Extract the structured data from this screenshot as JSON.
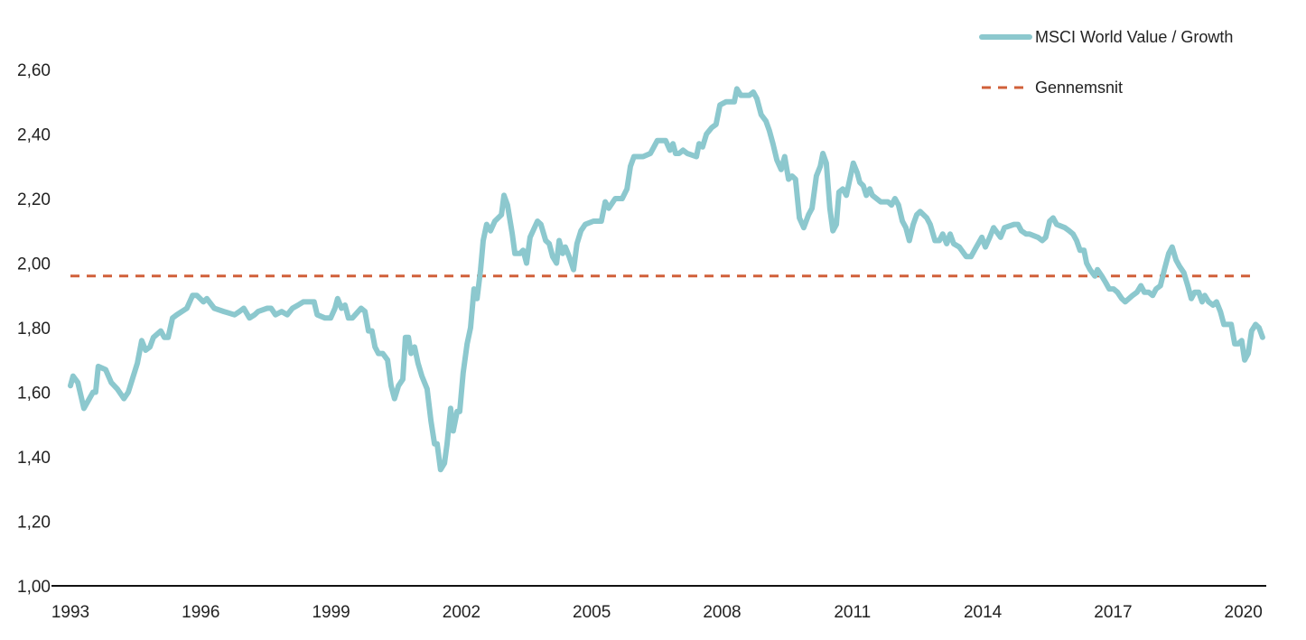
{
  "chart_data": {
    "type": "line",
    "title": "",
    "xlabel": "",
    "ylabel": "",
    "xlim": [
      1993,
      2020.45
    ],
    "ylim": [
      1.0,
      2.6
    ],
    "y_ticks": [
      "1,00",
      "1,20",
      "1,40",
      "1,60",
      "1,80",
      "2,00",
      "2,20",
      "2,40",
      "2,60"
    ],
    "y_tick_values": [
      1.0,
      1.2,
      1.4,
      1.6,
      1.8,
      2.0,
      2.2,
      2.4,
      2.6
    ],
    "x_ticks": [
      "1993",
      "1996",
      "1999",
      "2002",
      "2005",
      "2008",
      "2011",
      "2014",
      "2017",
      "2020"
    ],
    "x_tick_values": [
      1993,
      1996,
      1999,
      2002,
      2005,
      2008,
      2011,
      2014,
      2017,
      2020
    ],
    "grid": false,
    "legend_position": "top-right",
    "series": [
      {
        "name": "MSCI World Value / Growth",
        "color": "#8CC8CE",
        "style": "solid",
        "points": [
          [
            1993.0,
            1.62
          ],
          [
            1993.06,
            1.65
          ],
          [
            1993.17,
            1.63
          ],
          [
            1993.31,
            1.55
          ],
          [
            1993.52,
            1.6
          ],
          [
            1993.58,
            1.6
          ],
          [
            1993.64,
            1.68
          ],
          [
            1993.81,
            1.67
          ],
          [
            1993.94,
            1.63
          ],
          [
            1994.08,
            1.61
          ],
          [
            1994.23,
            1.58
          ],
          [
            1994.33,
            1.6
          ],
          [
            1994.54,
            1.69
          ],
          [
            1994.64,
            1.76
          ],
          [
            1994.73,
            1.73
          ],
          [
            1994.83,
            1.74
          ],
          [
            1994.91,
            1.77
          ],
          [
            1995.08,
            1.79
          ],
          [
            1995.16,
            1.77
          ],
          [
            1995.25,
            1.77
          ],
          [
            1995.35,
            1.83
          ],
          [
            1995.45,
            1.84
          ],
          [
            1995.68,
            1.86
          ],
          [
            1995.81,
            1.9
          ],
          [
            1995.91,
            1.9
          ],
          [
            1996.06,
            1.88
          ],
          [
            1996.14,
            1.89
          ],
          [
            1996.31,
            1.86
          ],
          [
            1996.53,
            1.85
          ],
          [
            1996.78,
            1.84
          ],
          [
            1996.89,
            1.85
          ],
          [
            1996.99,
            1.86
          ],
          [
            1997.12,
            1.83
          ],
          [
            1997.24,
            1.84
          ],
          [
            1997.32,
            1.85
          ],
          [
            1997.53,
            1.86
          ],
          [
            1997.62,
            1.86
          ],
          [
            1997.72,
            1.84
          ],
          [
            1997.86,
            1.85
          ],
          [
            1997.99,
            1.84
          ],
          [
            1998.11,
            1.86
          ],
          [
            1998.24,
            1.87
          ],
          [
            1998.36,
            1.88
          ],
          [
            1998.51,
            1.88
          ],
          [
            1998.61,
            1.88
          ],
          [
            1998.68,
            1.84
          ],
          [
            1998.86,
            1.83
          ],
          [
            1998.99,
            1.83
          ],
          [
            1999.09,
            1.86
          ],
          [
            1999.15,
            1.89
          ],
          [
            1999.24,
            1.86
          ],
          [
            1999.32,
            1.87
          ],
          [
            1999.4,
            1.83
          ],
          [
            1999.49,
            1.83
          ],
          [
            1999.69,
            1.86
          ],
          [
            1999.78,
            1.85
          ],
          [
            1999.86,
            1.79
          ],
          [
            1999.94,
            1.79
          ],
          [
            2000.01,
            1.74
          ],
          [
            2000.09,
            1.72
          ],
          [
            2000.19,
            1.72
          ],
          [
            2000.3,
            1.7
          ],
          [
            2000.38,
            1.62
          ],
          [
            2000.46,
            1.58
          ],
          [
            2000.55,
            1.62
          ],
          [
            2000.65,
            1.64
          ],
          [
            2000.71,
            1.77
          ],
          [
            2000.78,
            1.77
          ],
          [
            2000.84,
            1.72
          ],
          [
            2000.92,
            1.74
          ],
          [
            2001.0,
            1.69
          ],
          [
            2001.09,
            1.65
          ],
          [
            2001.21,
            1.61
          ],
          [
            2001.3,
            1.51
          ],
          [
            2001.38,
            1.44
          ],
          [
            2001.44,
            1.44
          ],
          [
            2001.52,
            1.36
          ],
          [
            2001.61,
            1.38
          ],
          [
            2001.67,
            1.44
          ],
          [
            2001.75,
            1.55
          ],
          [
            2001.81,
            1.48
          ],
          [
            2001.9,
            1.54
          ],
          [
            2001.96,
            1.54
          ],
          [
            2002.04,
            1.66
          ],
          [
            2002.13,
            1.75
          ],
          [
            2002.21,
            1.8
          ],
          [
            2002.29,
            1.92
          ],
          [
            2002.36,
            1.89
          ],
          [
            2002.44,
            1.98
          ],
          [
            2002.5,
            2.07
          ],
          [
            2002.58,
            2.12
          ],
          [
            2002.67,
            2.1
          ],
          [
            2002.77,
            2.13
          ],
          [
            2002.92,
            2.15
          ],
          [
            2002.98,
            2.21
          ],
          [
            2003.06,
            2.18
          ],
          [
            2003.17,
            2.09
          ],
          [
            2003.23,
            2.03
          ],
          [
            2003.35,
            2.03
          ],
          [
            2003.42,
            2.04
          ],
          [
            2003.5,
            2.0
          ],
          [
            2003.58,
            2.08
          ],
          [
            2003.75,
            2.13
          ],
          [
            2003.83,
            2.12
          ],
          [
            2003.94,
            2.07
          ],
          [
            2004.02,
            2.06
          ],
          [
            2004.1,
            2.02
          ],
          [
            2004.19,
            2.0
          ],
          [
            2004.25,
            2.07
          ],
          [
            2004.33,
            2.03
          ],
          [
            2004.39,
            2.05
          ],
          [
            2004.48,
            2.02
          ],
          [
            2004.58,
            1.98
          ],
          [
            2004.66,
            2.06
          ],
          [
            2004.75,
            2.1
          ],
          [
            2004.85,
            2.12
          ],
          [
            2005.04,
            2.13
          ],
          [
            2005.22,
            2.13
          ],
          [
            2005.31,
            2.19
          ],
          [
            2005.39,
            2.17
          ],
          [
            2005.54,
            2.2
          ],
          [
            2005.7,
            2.2
          ],
          [
            2005.81,
            2.23
          ],
          [
            2005.89,
            2.3
          ],
          [
            2005.97,
            2.33
          ],
          [
            2006.18,
            2.33
          ],
          [
            2006.35,
            2.34
          ],
          [
            2006.43,
            2.36
          ],
          [
            2006.51,
            2.38
          ],
          [
            2006.7,
            2.38
          ],
          [
            2006.8,
            2.35
          ],
          [
            2006.87,
            2.37
          ],
          [
            2006.93,
            2.34
          ],
          [
            2007.01,
            2.34
          ],
          [
            2007.1,
            2.35
          ],
          [
            2007.2,
            2.34
          ],
          [
            2007.41,
            2.33
          ],
          [
            2007.47,
            2.37
          ],
          [
            2007.55,
            2.36
          ],
          [
            2007.64,
            2.4
          ],
          [
            2007.76,
            2.42
          ],
          [
            2007.86,
            2.43
          ],
          [
            2007.95,
            2.49
          ],
          [
            2008.09,
            2.5
          ],
          [
            2008.28,
            2.5
          ],
          [
            2008.34,
            2.54
          ],
          [
            2008.43,
            2.52
          ],
          [
            2008.63,
            2.52
          ],
          [
            2008.72,
            2.53
          ],
          [
            2008.8,
            2.51
          ],
          [
            2008.9,
            2.46
          ],
          [
            2009.01,
            2.44
          ],
          [
            2009.09,
            2.41
          ],
          [
            2009.17,
            2.37
          ],
          [
            2009.26,
            2.32
          ],
          [
            2009.36,
            2.29
          ],
          [
            2009.44,
            2.33
          ],
          [
            2009.53,
            2.26
          ],
          [
            2009.61,
            2.27
          ],
          [
            2009.69,
            2.26
          ],
          [
            2009.78,
            2.14
          ],
          [
            2009.88,
            2.11
          ],
          [
            2009.99,
            2.15
          ],
          [
            2010.07,
            2.17
          ],
          [
            2010.17,
            2.27
          ],
          [
            2010.26,
            2.3
          ],
          [
            2010.32,
            2.34
          ],
          [
            2010.4,
            2.31
          ],
          [
            2010.48,
            2.17
          ],
          [
            2010.55,
            2.1
          ],
          [
            2010.63,
            2.12
          ],
          [
            2010.69,
            2.22
          ],
          [
            2010.78,
            2.23
          ],
          [
            2010.86,
            2.21
          ],
          [
            2010.94,
            2.26
          ],
          [
            2011.02,
            2.31
          ],
          [
            2011.11,
            2.28
          ],
          [
            2011.17,
            2.25
          ],
          [
            2011.25,
            2.24
          ],
          [
            2011.32,
            2.21
          ],
          [
            2011.4,
            2.23
          ],
          [
            2011.46,
            2.21
          ],
          [
            2011.65,
            2.19
          ],
          [
            2011.82,
            2.19
          ],
          [
            2011.9,
            2.18
          ],
          [
            2011.98,
            2.2
          ],
          [
            2012.06,
            2.18
          ],
          [
            2012.15,
            2.13
          ],
          [
            2012.23,
            2.11
          ],
          [
            2012.31,
            2.07
          ],
          [
            2012.4,
            2.12
          ],
          [
            2012.48,
            2.15
          ],
          [
            2012.56,
            2.16
          ],
          [
            2012.71,
            2.14
          ],
          [
            2012.79,
            2.12
          ],
          [
            2012.9,
            2.07
          ],
          [
            2013.0,
            2.07
          ],
          [
            2013.08,
            2.09
          ],
          [
            2013.17,
            2.06
          ],
          [
            2013.25,
            2.09
          ],
          [
            2013.33,
            2.06
          ],
          [
            2013.46,
            2.05
          ],
          [
            2013.62,
            2.02
          ],
          [
            2013.73,
            2.02
          ],
          [
            2013.81,
            2.04
          ],
          [
            2013.98,
            2.08
          ],
          [
            2014.06,
            2.05
          ],
          [
            2014.16,
            2.08
          ],
          [
            2014.25,
            2.11
          ],
          [
            2014.41,
            2.08
          ],
          [
            2014.5,
            2.11
          ],
          [
            2014.72,
            2.12
          ],
          [
            2014.81,
            2.12
          ],
          [
            2014.89,
            2.1
          ],
          [
            2015.0,
            2.09
          ],
          [
            2015.08,
            2.09
          ],
          [
            2015.27,
            2.08
          ],
          [
            2015.37,
            2.07
          ],
          [
            2015.45,
            2.08
          ],
          [
            2015.54,
            2.13
          ],
          [
            2015.62,
            2.14
          ],
          [
            2015.7,
            2.12
          ],
          [
            2015.89,
            2.11
          ],
          [
            2015.99,
            2.1
          ],
          [
            2016.08,
            2.09
          ],
          [
            2016.16,
            2.07
          ],
          [
            2016.24,
            2.04
          ],
          [
            2016.33,
            2.04
          ],
          [
            2016.39,
            2.0
          ],
          [
            2016.47,
            1.98
          ],
          [
            2016.58,
            1.96
          ],
          [
            2016.64,
            1.98
          ],
          [
            2016.74,
            1.96
          ],
          [
            2016.83,
            1.94
          ],
          [
            2016.91,
            1.92
          ],
          [
            2017.01,
            1.92
          ],
          [
            2017.1,
            1.91
          ],
          [
            2017.2,
            1.89
          ],
          [
            2017.28,
            1.88
          ],
          [
            2017.45,
            1.9
          ],
          [
            2017.55,
            1.91
          ],
          [
            2017.64,
            1.93
          ],
          [
            2017.72,
            1.91
          ],
          [
            2017.82,
            1.91
          ],
          [
            2017.91,
            1.9
          ],
          [
            2017.99,
            1.92
          ],
          [
            2018.09,
            1.93
          ],
          [
            2018.18,
            1.98
          ],
          [
            2018.28,
            2.03
          ],
          [
            2018.36,
            2.05
          ],
          [
            2018.45,
            2.01
          ],
          [
            2018.53,
            1.99
          ],
          [
            2018.63,
            1.97
          ],
          [
            2018.72,
            1.93
          ],
          [
            2018.8,
            1.89
          ],
          [
            2018.88,
            1.91
          ],
          [
            2018.97,
            1.91
          ],
          [
            2019.05,
            1.88
          ],
          [
            2019.11,
            1.9
          ],
          [
            2019.2,
            1.88
          ],
          [
            2019.3,
            1.87
          ],
          [
            2019.38,
            1.88
          ],
          [
            2019.47,
            1.85
          ],
          [
            2019.55,
            1.81
          ],
          [
            2019.72,
            1.81
          ],
          [
            2019.8,
            1.75
          ],
          [
            2019.88,
            1.75
          ],
          [
            2019.96,
            1.76
          ],
          [
            2020.03,
            1.7
          ],
          [
            2020.11,
            1.72
          ],
          [
            2020.19,
            1.79
          ],
          [
            2020.28,
            1.81
          ],
          [
            2020.36,
            1.8
          ],
          [
            2020.44,
            1.77
          ]
        ]
      },
      {
        "name": "Gennemsnit",
        "color": "#D0603A",
        "style": "dashed",
        "value": 1.96,
        "x_range": [
          1993,
          2020.3
        ]
      }
    ]
  }
}
